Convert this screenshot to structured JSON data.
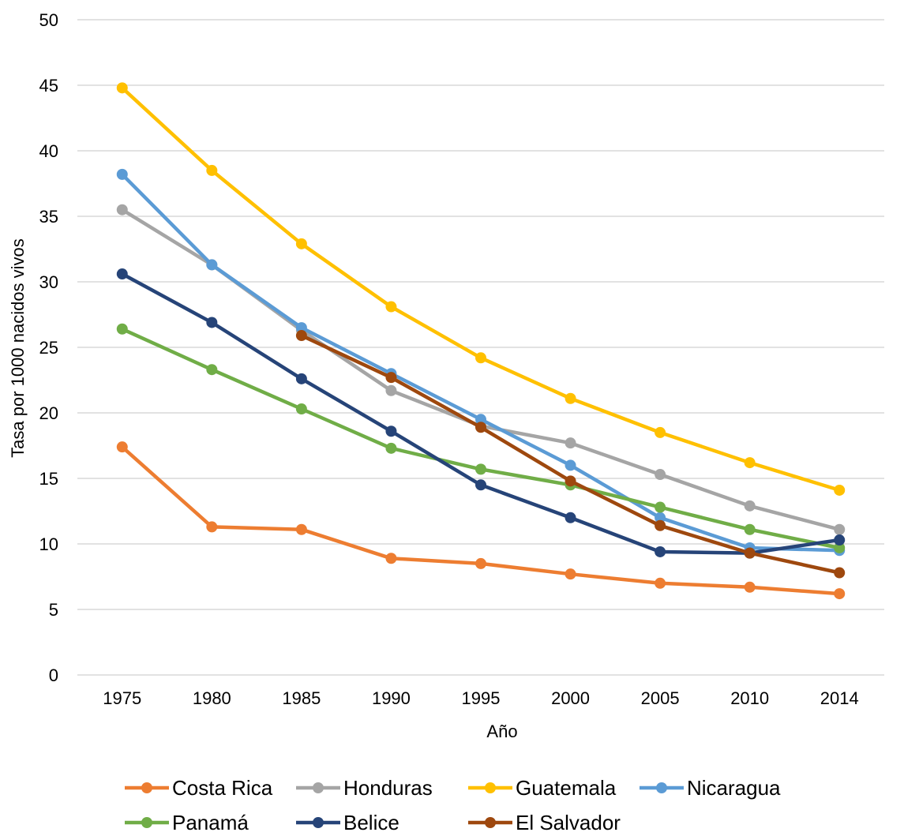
{
  "chart_data": {
    "type": "line",
    "title": "",
    "xlabel": "Año",
    "ylabel": "Tasa por 1000 nacidos vivos",
    "categories": [
      "1975",
      "1980",
      "1985",
      "1990",
      "1995",
      "2000",
      "2005",
      "2010",
      "2014"
    ],
    "ylim": [
      0,
      50
    ],
    "yticks": [
      0,
      5,
      10,
      15,
      20,
      25,
      30,
      35,
      40,
      45,
      50
    ],
    "grid": true,
    "legend_position": "bottom",
    "series": [
      {
        "name": "Costa Rica",
        "color": "#ed7d31",
        "values": [
          17.4,
          11.3,
          11.1,
          8.9,
          8.5,
          7.7,
          7.0,
          6.7,
          6.2
        ]
      },
      {
        "name": "Honduras",
        "color": "#a5a5a5",
        "values": [
          35.5,
          31.3,
          26.3,
          21.7,
          19.0,
          17.7,
          15.3,
          12.9,
          11.1
        ]
      },
      {
        "name": "Guatemala",
        "color": "#ffc000",
        "values": [
          44.8,
          38.5,
          32.9,
          28.1,
          24.2,
          21.1,
          18.5,
          16.2,
          14.1
        ]
      },
      {
        "name": "Nicaragua",
        "color": "#5b9bd5",
        "values": [
          38.2,
          31.3,
          26.5,
          23.0,
          19.5,
          16.0,
          12.0,
          9.7,
          9.5
        ]
      },
      {
        "name": "Panamá",
        "color": "#70ad47",
        "values": [
          26.4,
          23.3,
          20.3,
          17.3,
          15.7,
          14.5,
          12.8,
          11.1,
          9.7
        ]
      },
      {
        "name": "Belice",
        "color": "#264478",
        "values": [
          30.6,
          26.9,
          22.6,
          18.6,
          14.5,
          12.0,
          9.4,
          9.3,
          10.3
        ]
      },
      {
        "name": "El Salvador",
        "color": "#9e480e",
        "values": [
          null,
          null,
          25.9,
          22.7,
          18.9,
          14.8,
          11.4,
          9.3,
          7.8
        ]
      }
    ]
  }
}
